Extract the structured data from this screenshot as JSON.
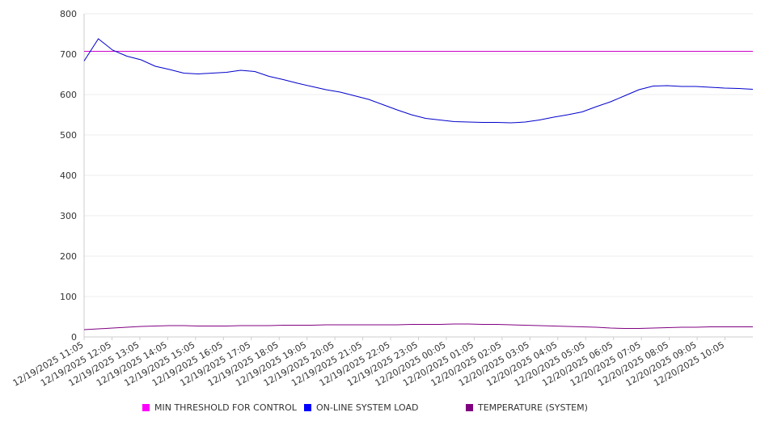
{
  "chart_data": {
    "type": "line",
    "title": "",
    "xlabel": "",
    "ylabel": "",
    "ylim": [
      0,
      800
    ],
    "yticks": [
      "0",
      "100",
      "200",
      "300",
      "400",
      "500",
      "600",
      "700",
      "800"
    ],
    "x_tick_labels": [
      "12/19/2025 11:05",
      "12/19/2025 12:05",
      "12/19/2025 13:05",
      "12/19/2025 14:05",
      "12/19/2025 15:05",
      "12/19/2025 16:05",
      "12/19/2025 17:05",
      "12/19/2025 18:05",
      "12/19/2025 19:05",
      "12/19/2025 20:05",
      "12/19/2025 21:05",
      "12/19/2025 22:05",
      "12/19/2025 23:05",
      "12/20/2025 00:05",
      "12/20/2025 01:05",
      "12/20/2025 02:05",
      "12/20/2025 03:05",
      "12/20/2025 04:05",
      "12/20/2025 05:05",
      "12/20/2025 06:05",
      "12/20/2025 07:05",
      "12/20/2025 08:05",
      "12/20/2025 09:05",
      "12/20/2025 10:05"
    ],
    "x": [
      "12/19/2025 11:05",
      "12/19/2025 11:35",
      "12/19/2025 12:05",
      "12/19/2025 12:35",
      "12/19/2025 13:05",
      "12/19/2025 13:35",
      "12/19/2025 14:05",
      "12/19/2025 14:35",
      "12/19/2025 15:05",
      "12/19/2025 15:35",
      "12/19/2025 16:05",
      "12/19/2025 16:35",
      "12/19/2025 17:05",
      "12/19/2025 17:35",
      "12/19/2025 18:05",
      "12/19/2025 18:35",
      "12/19/2025 19:05",
      "12/19/2025 19:35",
      "12/19/2025 20:05",
      "12/19/2025 20:35",
      "12/19/2025 21:05",
      "12/19/2025 21:35",
      "12/19/2025 22:05",
      "12/19/2025 22:35",
      "12/19/2025 23:05",
      "12/19/2025 23:35",
      "12/20/2025 00:05",
      "12/20/2025 00:35",
      "12/20/2025 01:05",
      "12/20/2025 01:35",
      "12/20/2025 02:05",
      "12/20/2025 02:35",
      "12/20/2025 03:05",
      "12/20/2025 03:35",
      "12/20/2025 04:05",
      "12/20/2025 04:35",
      "12/20/2025 05:05",
      "12/20/2025 05:35",
      "12/20/2025 06:05",
      "12/20/2025 06:35",
      "12/20/2025 07:05",
      "12/20/2025 07:35",
      "12/20/2025 08:05",
      "12/20/2025 08:35",
      "12/20/2025 09:05",
      "12/20/2025 09:35",
      "12/20/2025 10:05",
      "12/20/2025 10:35"
    ],
    "series": [
      {
        "name": "MIN THRESHOLD FOR CONTROL",
        "color": "#cc00cc",
        "values": [
          707,
          707,
          707,
          707,
          707,
          707,
          707,
          707,
          707,
          707,
          707,
          707,
          707,
          707,
          707,
          707,
          707,
          707,
          707,
          707,
          707,
          707,
          707,
          707,
          707,
          707,
          707,
          707,
          707,
          707,
          707,
          707,
          707,
          707,
          707,
          707,
          707,
          707,
          707,
          707,
          707,
          707,
          707,
          707,
          707,
          707,
          707,
          707
        ]
      },
      {
        "name": "ON-LINE SYSTEM LOAD",
        "color": "#0000cc",
        "values": [
          683,
          738,
          710,
          695,
          686,
          670,
          662,
          653,
          651,
          653,
          655,
          660,
          657,
          645,
          637,
          628,
          620,
          612,
          606,
          597,
          588,
          575,
          562,
          550,
          541,
          537,
          533,
          532,
          531,
          531,
          530,
          532,
          537,
          544,
          550,
          557,
          570,
          582,
          597,
          612,
          621,
          622,
          620,
          620,
          618,
          616,
          615,
          613
        ]
      },
      {
        "name": "TEMPERATURE (SYSTEM)",
        "color": "#800080",
        "values": [
          18,
          20,
          22,
          24,
          26,
          27,
          28,
          28,
          27,
          27,
          27,
          28,
          28,
          28,
          29,
          29,
          29,
          30,
          30,
          30,
          30,
          30,
          30,
          31,
          31,
          31,
          32,
          32,
          31,
          31,
          30,
          29,
          28,
          27,
          26,
          25,
          24,
          22,
          21,
          21,
          22,
          23,
          24,
          24,
          25,
          25,
          25,
          25
        ]
      }
    ],
    "grid": true,
    "legend_position": "bottom"
  }
}
